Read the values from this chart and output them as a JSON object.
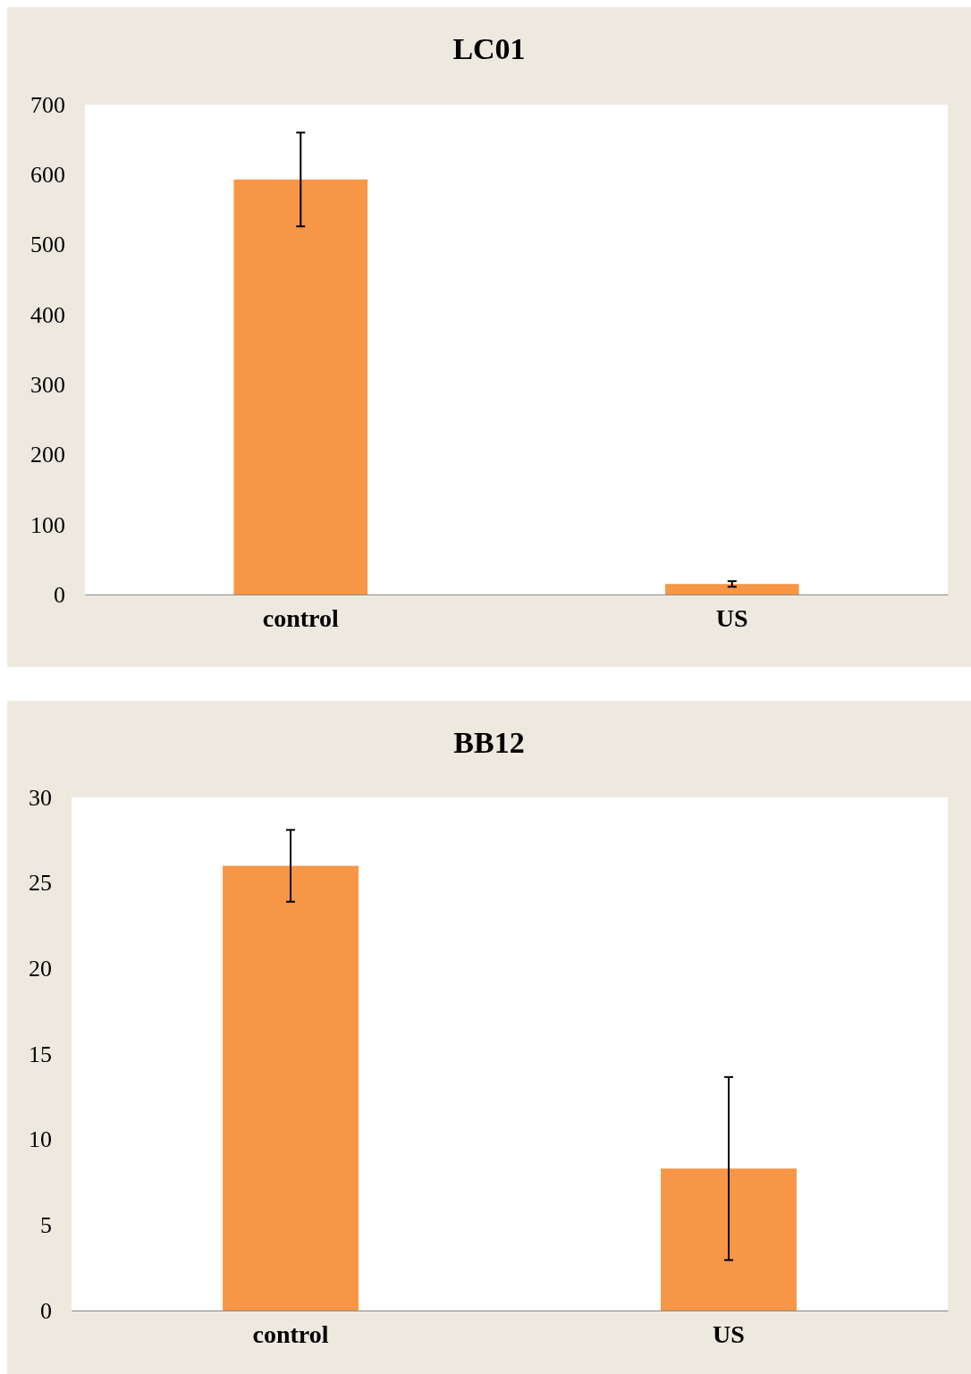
{
  "chart_data": [
    {
      "type": "bar",
      "title": "LC01",
      "categories": [
        "control",
        "US"
      ],
      "values": [
        593,
        15
      ],
      "errors": [
        67,
        4
      ],
      "color": "#f79646",
      "ylim": [
        0,
        700
      ],
      "yticks": [
        0,
        100,
        200,
        300,
        400,
        500,
        600,
        700
      ],
      "grid": false
    },
    {
      "type": "bar",
      "title": "BB12",
      "categories": [
        "control",
        "US"
      ],
      "values": [
        26.0,
        8.3
      ],
      "errors": [
        2.1,
        5.35
      ],
      "color": "#f79646",
      "ylim": [
        0,
        30
      ],
      "yticks": [
        0,
        5,
        10,
        15,
        20,
        25,
        30
      ],
      "grid": false
    }
  ]
}
